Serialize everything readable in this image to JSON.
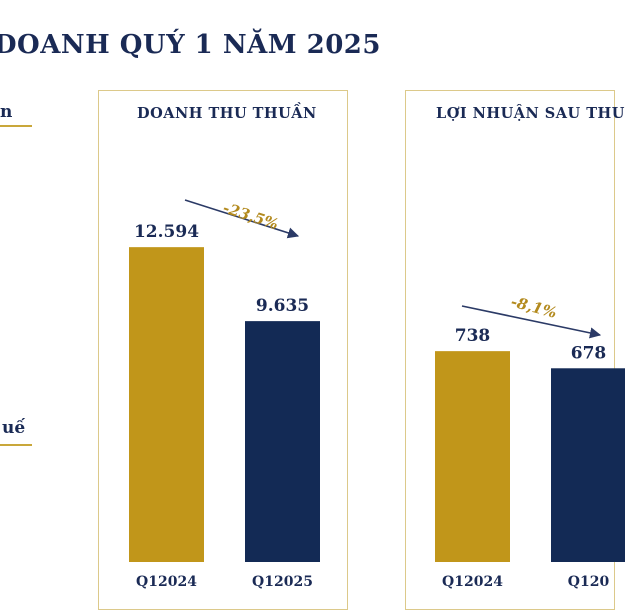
{
  "page": {
    "title": "DOANH QUÝ 1 NĂM 2025",
    "side_fragment_top": "n",
    "side_fragment_bottom": "uế"
  },
  "colors": {
    "gold": "#c1961a",
    "navy": "#132a55",
    "border": "#dcc98a",
    "text": "#1a2a55",
    "arrow": "#2b3a66"
  },
  "chart_data": [
    {
      "type": "bar",
      "title": "DOANH THU THUẦN",
      "categories": [
        "Q12024",
        "Q12025"
      ],
      "values": [
        12594,
        9635
      ],
      "value_labels": [
        "12.594",
        "9.635"
      ],
      "bar_colors": [
        "#c1961a",
        "#132a55"
      ],
      "change_label": "-23,5%",
      "ylim": [
        0,
        16000
      ],
      "grid": false
    },
    {
      "type": "bar",
      "title": "LỢI NHUẬN SAU THU",
      "categories": [
        "Q12024",
        "Q120"
      ],
      "values": [
        738,
        678
      ],
      "value_labels": [
        "738",
        "678"
      ],
      "bar_colors": [
        "#c1961a",
        "#132a55"
      ],
      "change_label": "-8,1%",
      "ylim": [
        0,
        1400
      ],
      "grid": false
    }
  ]
}
